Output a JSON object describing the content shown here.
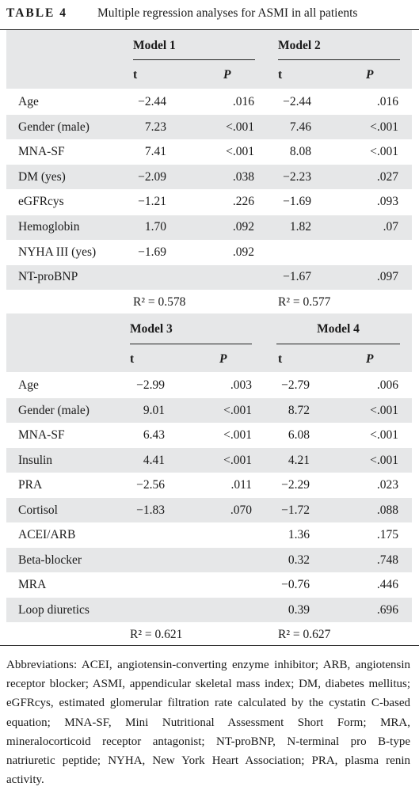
{
  "title": {
    "label": "TABLE 4",
    "text": "Multiple regression analyses for ASMI in all patients"
  },
  "tables": [
    {
      "models": [
        "Model 1",
        "Model 2"
      ],
      "columns": [
        "t",
        "P",
        "t",
        "P"
      ],
      "rows": [
        [
          "Age",
          "−2.44",
          ".016",
          "−2.44",
          ".016"
        ],
        [
          "Gender (male)",
          "7.23",
          "<.001",
          "7.46",
          "<.001"
        ],
        [
          "MNA-SF",
          "7.41",
          "<.001",
          "8.08",
          "<.001"
        ],
        [
          "DM (yes)",
          "−2.09",
          ".038",
          "−2.23",
          ".027"
        ],
        [
          "eGFRcys",
          "−1.21",
          ".226",
          "−1.69",
          ".093"
        ],
        [
          "Hemoglobin",
          "1.70",
          ".092",
          "1.82",
          ".07"
        ],
        [
          "NYHA III (yes)",
          "−1.69",
          ".092",
          null,
          null
        ],
        [
          "NT-proBNP",
          null,
          null,
          "−1.67",
          ".097"
        ]
      ],
      "r2": [
        "R² = 0.578",
        "R² = 0.577"
      ]
    },
    {
      "models": [
        "Model 3",
        "Model 4"
      ],
      "columns": [
        "t",
        "P",
        "t",
        "P"
      ],
      "rows": [
        [
          "Age",
          "−2.99",
          ".003",
          "−2.79",
          ".006"
        ],
        [
          "Gender (male)",
          "9.01",
          "<.001",
          "8.72",
          "<.001"
        ],
        [
          "MNA-SF",
          "6.43",
          "<.001",
          "6.08",
          "<.001"
        ],
        [
          "Insulin",
          "4.41",
          "<.001",
          "4.21",
          "<.001"
        ],
        [
          "PRA",
          "−2.56",
          ".011",
          "−2.29",
          ".023"
        ],
        [
          "Cortisol",
          "−1.83",
          ".070",
          "−1.72",
          ".088"
        ],
        [
          "ACEI/ARB",
          null,
          null,
          "1.36",
          ".175"
        ],
        [
          "Beta-blocker",
          null,
          null,
          "0.32",
          ".748"
        ],
        [
          "MRA",
          null,
          null,
          "−0.76",
          ".446"
        ],
        [
          "Loop diuretics",
          null,
          null,
          "0.39",
          ".696"
        ]
      ],
      "r2": [
        "R² = 0.621",
        "R² = 0.627"
      ]
    }
  ],
  "footnote": "Abbreviations: ACEI, angiotensin-converting enzyme inhibitor; ARB, angiotensin receptor blocker; ASMI, appendicular skeletal mass index; DM, diabetes mellitus; eGFRcys, estimated glomerular filtration rate calculated by the cystatin C-based equation; MNA-SF, Mini Nutritional Assessment Short Form; MRA, mineralocorticoid receptor antagonist; NT-proBNP, N-terminal pro B-type natriuretic peptide; NYHA, New York Heart Association; PRA, plasma renin activity."
}
